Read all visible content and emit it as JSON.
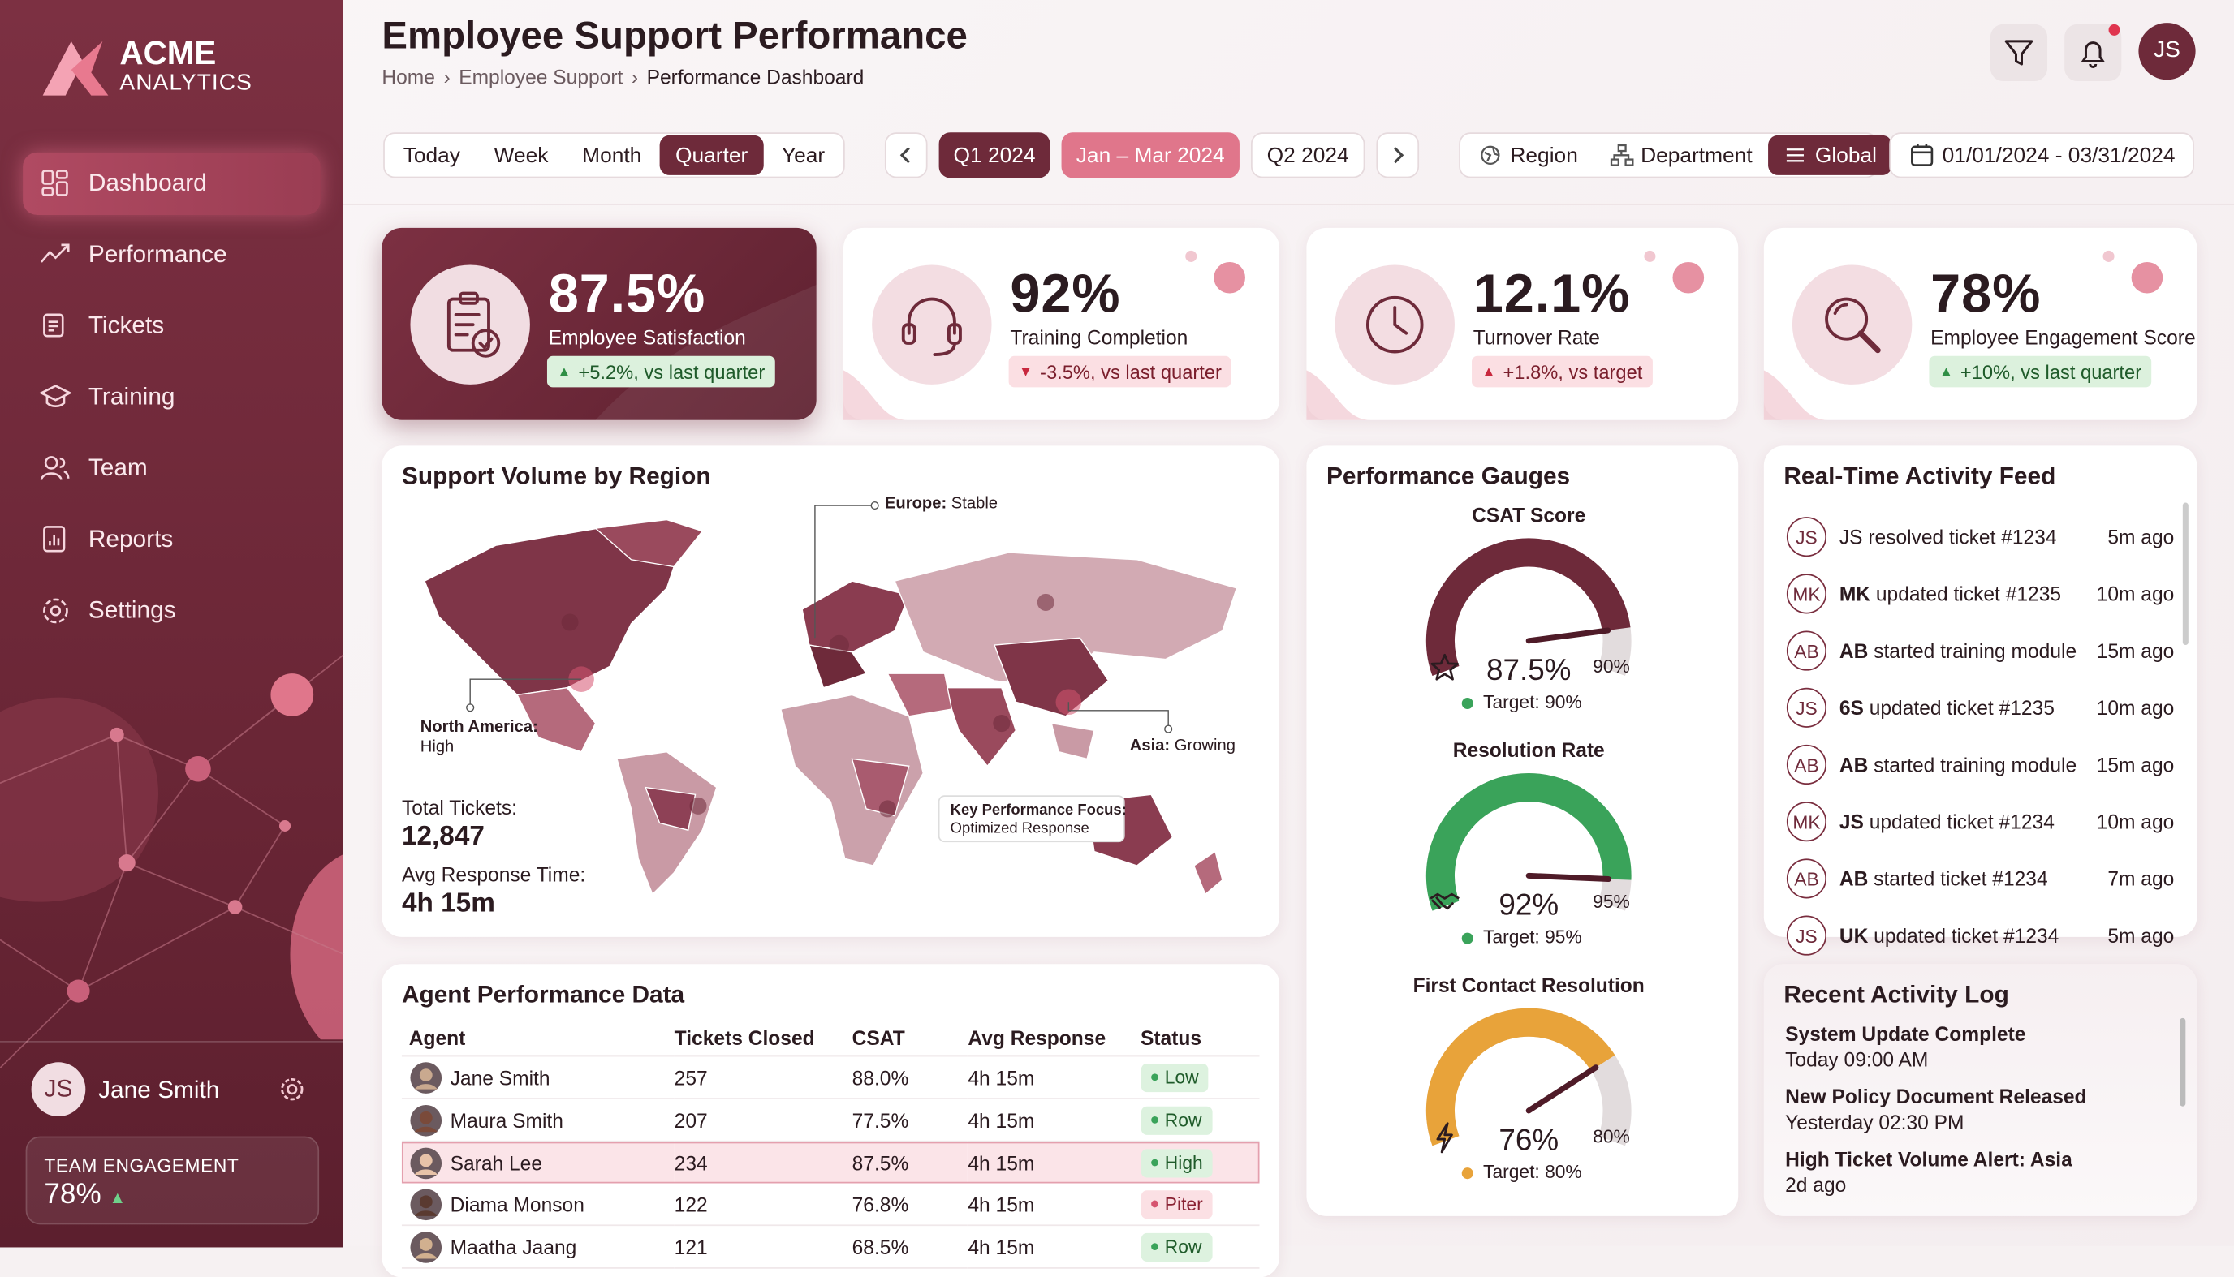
{
  "sidebar": {
    "brand": {
      "name": "ACME",
      "tagline": "ANALYTICS"
    },
    "nav": [
      {
        "label": "Dashboard",
        "active": true
      },
      {
        "label": "Performance",
        "active": false
      },
      {
        "label": "Tickets",
        "active": false
      },
      {
        "label": "Training",
        "active": false
      },
      {
        "label": "Team",
        "active": false
      },
      {
        "label": "Reports",
        "active": false
      },
      {
        "label": "Settings",
        "active": false
      }
    ],
    "user": {
      "initials": "JS",
      "name": "Jane Smith"
    },
    "engagement": {
      "label": "TEAM ENGAGEMENT",
      "value": "78%"
    }
  },
  "header": {
    "title": "Employee Support Performance",
    "breadcrumb": [
      "Home",
      "Employee Support",
      "Performance Dashboard"
    ],
    "avatar": "JS"
  },
  "toolbar": {
    "periods": [
      {
        "label": "Today",
        "active": false
      },
      {
        "label": "Week",
        "active": false
      },
      {
        "label": "Month",
        "active": false
      },
      {
        "label": "Quarter",
        "active": true
      },
      {
        "label": "Year",
        "active": false
      }
    ],
    "quarters": {
      "current": "Q1 2024",
      "range": "Jan – Mar 2024",
      "next": "Q2 2024"
    },
    "scopes": [
      {
        "label": "Region",
        "active": false
      },
      {
        "label": "Department",
        "active": false
      },
      {
        "label": "Global",
        "active": true
      }
    ],
    "date_range": "01/01/2024 - 03/31/2024"
  },
  "kpis": [
    {
      "value": "87.5%",
      "label": "Employee Satisfaction",
      "change": "+5.2%, vs last quarter",
      "trend": "up",
      "good": true,
      "highlight": true
    },
    {
      "value": "92%",
      "label": "Training Completion",
      "change": "-3.5%, vs last quarter",
      "trend": "down",
      "good": false,
      "highlight": false
    },
    {
      "value": "12.1%",
      "label": "Turnover Rate",
      "change": "+1.8%, vs target",
      "trend": "up",
      "good": false,
      "highlight": false
    },
    {
      "value": "78%",
      "label": "Employee Engagement Score",
      "change": "+10%, vs last quarter",
      "trend": "up",
      "good": true,
      "highlight": false
    }
  ],
  "map": {
    "title": "Support Volume by Region",
    "annotations": {
      "europe": {
        "region": "Europe:",
        "status": "Stable"
      },
      "north_america": {
        "region": "North America:",
        "status": "High"
      },
      "asia": {
        "region": "Asia:",
        "status": "Growing"
      },
      "focus": {
        "title": "Key Performance Focus:",
        "text": "Optimized Response"
      }
    },
    "stats": [
      {
        "label": "Total Tickets:",
        "value": "12,847"
      },
      {
        "label": "Avg Response Time:",
        "value": "4h 15m"
      }
    ]
  },
  "gauges": {
    "title": "Performance Gauges",
    "items": [
      {
        "name": "CSAT Score",
        "value": 87.5,
        "value_label": "87.5%",
        "target_label": "Target: 90%",
        "max_label": "90%",
        "color": "#6e2a3a",
        "dot": "#3aa35a"
      },
      {
        "name": "Resolution Rate",
        "value": 92,
        "value_label": "92%",
        "target_label": "Target: 95%",
        "max_label": "95%",
        "color": "#3aa35a",
        "dot": "#3aa35a"
      },
      {
        "name": "First Contact Resolution",
        "value": 76,
        "value_label": "76%",
        "target_label": "Target: 80%",
        "max_label": "80%",
        "color": "#e8a33a",
        "dot": "#e8a33a"
      }
    ]
  },
  "feed": {
    "title": "Real-Time Activity Feed",
    "items": [
      {
        "avatar": "JS",
        "actor": "JS",
        "action": "resolved ticket #1234",
        "time": "5m ago"
      },
      {
        "avatar": "MK",
        "actor": "MK",
        "action": "updated ticket #1235",
        "time": "10m ago"
      },
      {
        "avatar": "AB",
        "actor": "AB",
        "action": "started training module",
        "time": "15m ago"
      },
      {
        "avatar": "JS",
        "actor": "6S",
        "action": "updated ticket #1235",
        "time": "10m ago"
      },
      {
        "avatar": "AB",
        "actor": "AB",
        "action": "started training module",
        "time": "15m ago"
      },
      {
        "avatar": "MK",
        "actor": "JS",
        "action": "updated ticket #1234",
        "time": "10m ago"
      },
      {
        "avatar": "AB",
        "actor": "AB",
        "action": "started ticket #1234",
        "time": "7m ago"
      },
      {
        "avatar": "JS",
        "actor": "UK",
        "action": "updated ticket #1234",
        "time": "5m ago"
      }
    ]
  },
  "log": {
    "title": "Recent Activity Log",
    "items": [
      {
        "title": "System Update Complete",
        "time": "Today 09:00 AM"
      },
      {
        "title": "New Policy Document Released",
        "time": "Yesterday 02:30 PM"
      },
      {
        "title": "High Ticket Volume Alert: Asia",
        "time": "2d ago"
      }
    ]
  },
  "table": {
    "title": "Agent Performance Data",
    "columns": [
      "Agent",
      "Tickets Closed",
      "CSAT",
      "Avg Response",
      "Status"
    ],
    "rows": [
      {
        "cells": [
          "Jane Smith",
          257,
          "88.0%",
          "4h 15m",
          "Low"
        ],
        "tone": "good",
        "selected": false
      },
      {
        "cells": [
          "Maura Smith",
          207,
          "77.5%",
          "4h 15m",
          "Row"
        ],
        "tone": "good",
        "selected": false
      },
      {
        "cells": [
          "Sarah Lee",
          234,
          "87.5%",
          "4h 15m",
          "High"
        ],
        "tone": "good",
        "selected": true
      },
      {
        "cells": [
          "Diama Monson",
          122,
          "76.8%",
          "4h 15m",
          "Piter"
        ],
        "tone": "bad",
        "selected": false
      },
      {
        "cells": [
          "Maatha Jaang",
          121,
          "68.5%",
          "4h 15m",
          "Row"
        ],
        "tone": "good",
        "selected": false
      }
    ]
  }
}
